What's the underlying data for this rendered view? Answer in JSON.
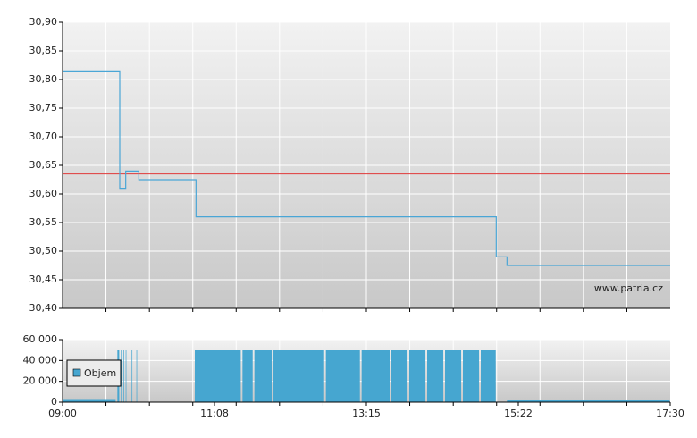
{
  "chart_data": [
    {
      "type": "line",
      "xlim": [
        540,
        1050
      ],
      "xgrid": [
        576.4,
        612.9,
        649.3,
        685.7,
        722.1,
        758.6,
        795,
        831.4,
        867.9,
        904.3,
        940.7,
        977.1,
        1013.6
      ],
      "ylim": [
        30.4,
        30.9
      ],
      "yticks": [
        {
          "value": 30.4,
          "label": "30,40"
        },
        {
          "value": 30.45,
          "label": "30,45"
        },
        {
          "value": 30.5,
          "label": "30,50"
        },
        {
          "value": 30.55,
          "label": "30,55"
        },
        {
          "value": 30.6,
          "label": "30,60"
        },
        {
          "value": 30.65,
          "label": "30,65"
        },
        {
          "value": 30.7,
          "label": "30,70"
        },
        {
          "value": 30.75,
          "label": "30,75"
        },
        {
          "value": 30.8,
          "label": "30,80"
        },
        {
          "value": 30.85,
          "label": "30,85"
        },
        {
          "value": 30.9,
          "label": "30,90"
        }
      ],
      "x": [
        540,
        588,
        588,
        593,
        593,
        604,
        604,
        652,
        652,
        904,
        904,
        913,
        913,
        1050
      ],
      "values": [
        30.815,
        30.815,
        30.61,
        30.61,
        30.64,
        30.64,
        30.625,
        30.625,
        30.56,
        30.56,
        30.49,
        30.49,
        30.475,
        30.475
      ],
      "color": "#4aa6d6",
      "reference_line": {
        "value": 30.635,
        "color": "#e03a3a"
      },
      "annotation": "www.patria.cz",
      "grid": true
    },
    {
      "type": "histogram",
      "xlim": [
        540,
        1050
      ],
      "xgrid": [
        576.4,
        612.9,
        649.3,
        685.7,
        722.1,
        758.6,
        795,
        831.4,
        867.9,
        904.3,
        940.7,
        977.1,
        1013.6
      ],
      "xticks": [
        {
          "value": 540,
          "label": "09:00"
        },
        {
          "value": 667.5,
          "label": "11:08"
        },
        {
          "value": 795,
          "label": "13:15"
        },
        {
          "value": 922.5,
          "label": "15:22"
        },
        {
          "value": 1050,
          "label": "17:30"
        }
      ],
      "ylim": [
        0,
        60000
      ],
      "yticks": [
        0,
        {
          "value": 20000,
          "label": "20 000"
        },
        {
          "value": 40000,
          "label": "40 000"
        },
        {
          "value": 60000,
          "label": "60 000"
        }
      ],
      "bins": [
        540,
        585,
        586,
        588,
        589,
        590,
        591,
        592,
        593,
        594,
        595,
        598,
        599,
        602,
        603,
        604,
        651,
        690,
        691,
        700,
        701,
        716,
        717,
        760,
        761,
        790,
        791,
        815,
        816,
        830,
        831,
        845,
        846,
        860,
        861,
        875,
        876,
        890,
        891,
        904,
        913,
        1050
      ],
      "values": [
        3000,
        0,
        50000,
        0,
        50000,
        0,
        50000,
        0,
        50000,
        0,
        0,
        50000,
        0,
        50000,
        0,
        0,
        50000,
        0,
        50000,
        0,
        50000,
        0,
        50000,
        0,
        50000,
        0,
        50000,
        0,
        50000,
        0,
        50000,
        0,
        50000,
        0,
        50000,
        0,
        50000,
        0,
        50000,
        0,
        2000
      ],
      "name": "Objem",
      "color": "#46a6d0",
      "grid": true
    }
  ]
}
